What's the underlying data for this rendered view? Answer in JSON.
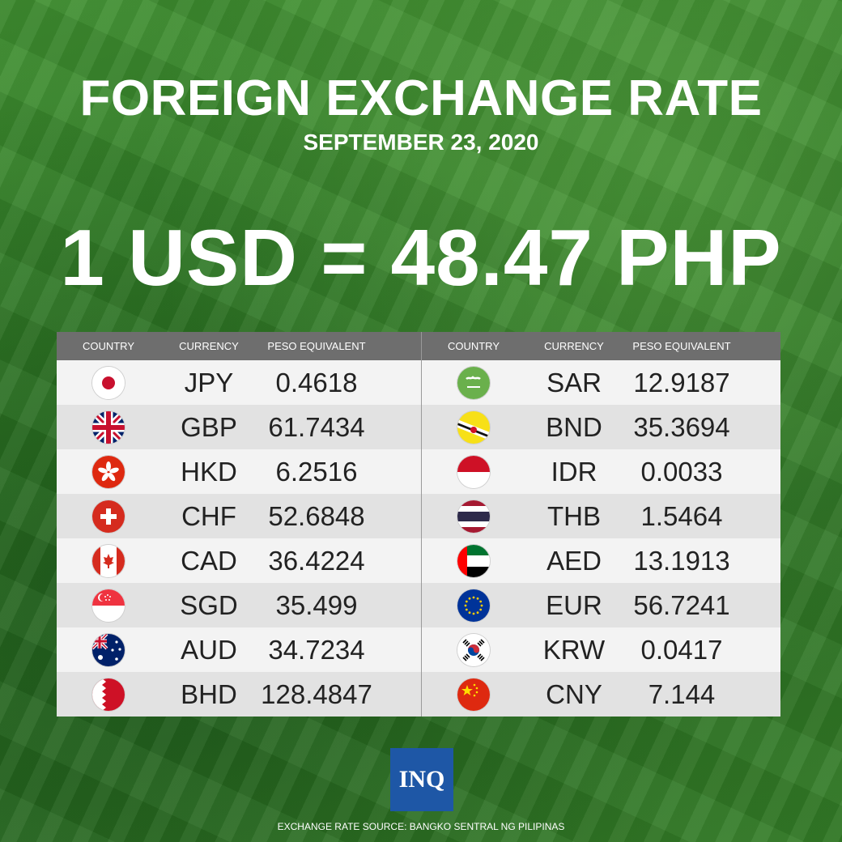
{
  "title": "FOREIGN EXCHANGE RATE",
  "date": "SEPTEMBER 23, 2020",
  "rate": "1 USD = 48.47 PHP",
  "headers": {
    "country": "COUNTRY",
    "currency": "CURRENCY",
    "peso": "PESO EQUIVALENT"
  },
  "left": [
    {
      "flag": "japan-flag-icon",
      "currency": "JPY",
      "peso": "0.4618"
    },
    {
      "flag": "uk-flag-icon",
      "currency": "GBP",
      "peso": "61.7434"
    },
    {
      "flag": "hong-kong-flag-icon",
      "currency": "HKD",
      "peso": "6.2516"
    },
    {
      "flag": "switzerland-flag-icon",
      "currency": "CHF",
      "peso": "52.6848"
    },
    {
      "flag": "canada-flag-icon",
      "currency": "CAD",
      "peso": "36.4224"
    },
    {
      "flag": "singapore-flag-icon",
      "currency": "SGD",
      "peso": "35.499"
    },
    {
      "flag": "australia-flag-icon",
      "currency": "AUD",
      "peso": "34.7234"
    },
    {
      "flag": "bahrain-flag-icon",
      "currency": "BHD",
      "peso": "128.4847"
    }
  ],
  "right": [
    {
      "flag": "saudi-arabia-flag-icon",
      "currency": "SAR",
      "peso": "12.9187"
    },
    {
      "flag": "brunei-flag-icon",
      "currency": "BND",
      "peso": "35.3694"
    },
    {
      "flag": "indonesia-flag-icon",
      "currency": "IDR",
      "peso": "0.0033"
    },
    {
      "flag": "thailand-flag-icon",
      "currency": "THB",
      "peso": "1.5464"
    },
    {
      "flag": "uae-flag-icon",
      "currency": "AED",
      "peso": "13.1913"
    },
    {
      "flag": "eu-flag-icon",
      "currency": "EUR",
      "peso": "56.7241"
    },
    {
      "flag": "south-korea-flag-icon",
      "currency": "KRW",
      "peso": "0.0417"
    },
    {
      "flag": "china-flag-icon",
      "currency": "CNY",
      "peso": "7.144"
    }
  ],
  "logo": "INQ",
  "source": "EXCHANGE RATE SOURCE: BANGKO SENTRAL NG PILIPINAS",
  "colors": {
    "background": "#2f7a25",
    "header_bar": "#6e6e6e",
    "logo_blue": "#1e57a6"
  }
}
